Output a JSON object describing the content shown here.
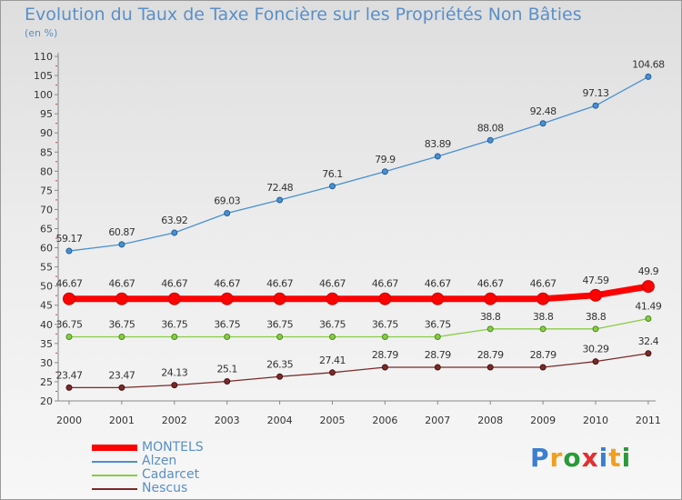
{
  "chart_data": {
    "type": "line",
    "title": "Evolution du Taux de Taxe Foncière sur les Propriétés Non Bâties",
    "unit_label": "(en %)",
    "xlabel": "",
    "ylabel": "(en %)",
    "ylim": [
      20,
      110
    ],
    "yticks": [
      20,
      25,
      30,
      35,
      40,
      45,
      50,
      55,
      60,
      65,
      70,
      75,
      80,
      85,
      90,
      95,
      100,
      105,
      110
    ],
    "categories": [
      "2000",
      "2001",
      "2002",
      "2003",
      "2004",
      "2005",
      "2006",
      "2007",
      "2008",
      "2009",
      "2010",
      "2011"
    ],
    "series": [
      {
        "name": "MONTELS",
        "color": "#ff0000",
        "values": [
          46.67,
          46.67,
          46.67,
          46.67,
          46.67,
          46.67,
          46.67,
          46.67,
          46.67,
          46.67,
          47.59,
          49.9
        ],
        "labels": [
          "46.67",
          "46.67",
          "46.67",
          "46.67",
          "46.67",
          "46.67",
          "46.67",
          "46.67",
          "46.67",
          "46.67",
          "47.59",
          "49.9"
        ]
      },
      {
        "name": "Alzen",
        "color": "#4a90d0",
        "values": [
          59.17,
          60.87,
          63.92,
          69.03,
          72.48,
          76.1,
          79.9,
          83.89,
          88.08,
          92.48,
          97.13,
          104.68
        ],
        "labels": [
          "59.17",
          "60.87",
          "63.92",
          "69.03",
          "72.48",
          "76.1",
          "79.9",
          "83.89",
          "88.08",
          "92.48",
          "97.13",
          "104.68"
        ]
      },
      {
        "name": "Cadarcet",
        "color": "#88cc44",
        "values": [
          36.75,
          36.75,
          36.75,
          36.75,
          36.75,
          36.75,
          36.75,
          36.75,
          38.8,
          38.8,
          38.8,
          41.49
        ],
        "labels": [
          "36.75",
          "36.75",
          "36.75",
          "36.75",
          "36.75",
          "36.75",
          "36.75",
          "36.75",
          "38.8",
          "38.8",
          "38.8",
          "41.49"
        ]
      },
      {
        "name": "Nescus",
        "color": "#7a2a2a",
        "values": [
          23.47,
          23.47,
          24.13,
          25.1,
          26.35,
          27.41,
          28.79,
          28.79,
          28.79,
          28.79,
          30.29,
          32.4
        ],
        "labels": [
          "23.47",
          "23.47",
          "24.13",
          "25.1",
          "26.35",
          "27.41",
          "28.79",
          "28.79",
          "28.79",
          "28.79",
          "30.29",
          "32.4"
        ]
      }
    ],
    "legend_position": "bottom-left",
    "grid": false
  },
  "brand": {
    "letters": [
      "P",
      "r",
      "o",
      "x",
      "i",
      "t",
      "i"
    ],
    "colors": [
      "#3a7fd0",
      "#f0a020",
      "#2a9a3a",
      "#e03030",
      "#3a7fd0",
      "#f0a020",
      "#2a9a3a"
    ]
  }
}
